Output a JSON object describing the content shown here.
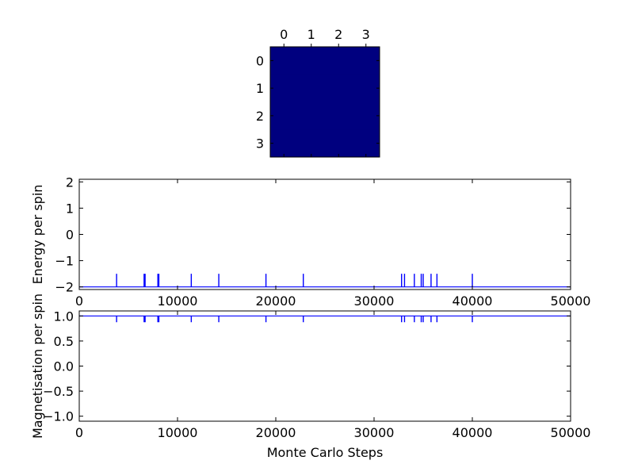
{
  "chart_data": [
    {
      "type": "heatmap",
      "title": "",
      "x_ticks": [
        "0",
        "1",
        "2",
        "3"
      ],
      "y_ticks": [
        "0",
        "1",
        "2",
        "3"
      ],
      "colormap": "jet",
      "cell_color": "#00007f",
      "values": [
        [
          -1,
          -1,
          -1,
          -1
        ],
        [
          -1,
          -1,
          -1,
          -1
        ],
        [
          -1,
          -1,
          -1,
          -1
        ],
        [
          -1,
          -1,
          -1,
          -1
        ]
      ]
    },
    {
      "type": "line",
      "title": "",
      "xlabel": "",
      "ylabel": "Energy per spin",
      "xlim": [
        0,
        50000
      ],
      "ylim": [
        -2.1,
        2.1
      ],
      "x_ticks": [
        0,
        10000,
        20000,
        30000,
        40000,
        50000
      ],
      "x_tick_labels": [
        "0",
        "10000",
        "20000",
        "30000",
        "40000",
        "50000"
      ],
      "y_ticks": [
        2,
        1,
        0,
        -1,
        -2
      ],
      "y_tick_labels": [
        "2",
        "1",
        "0",
        "−1",
        "−2"
      ],
      "color": "#0000ff",
      "baseline": -2,
      "spike_value": -1.5,
      "spikes_x": [
        3800,
        6600,
        6700,
        8000,
        8100,
        11400,
        14200,
        19000,
        22800,
        32800,
        33100,
        34100,
        34800,
        35000,
        35800,
        36400,
        40000
      ]
    },
    {
      "type": "line",
      "title": "",
      "xlabel": "Monte Carlo Steps",
      "ylabel": "Magnetisation per spin",
      "xlim": [
        0,
        50000
      ],
      "ylim": [
        -1.1,
        1.1
      ],
      "x_ticks": [
        0,
        10000,
        20000,
        30000,
        40000,
        50000
      ],
      "x_tick_labels": [
        "0",
        "10000",
        "20000",
        "30000",
        "40000",
        "50000"
      ],
      "y_ticks": [
        1.0,
        0.5,
        0.0,
        -0.5,
        -1.0
      ],
      "y_tick_labels": [
        "1.0",
        "0.5",
        "0.0",
        "−0.5",
        "−1.0"
      ],
      "color": "#0000ff",
      "baseline": 1.0,
      "spike_value": 0.875,
      "spikes_x": [
        3800,
        6600,
        6700,
        8000,
        8100,
        11400,
        14200,
        19000,
        22800,
        32800,
        33100,
        34100,
        34800,
        35000,
        35800,
        36400,
        40000
      ]
    }
  ]
}
